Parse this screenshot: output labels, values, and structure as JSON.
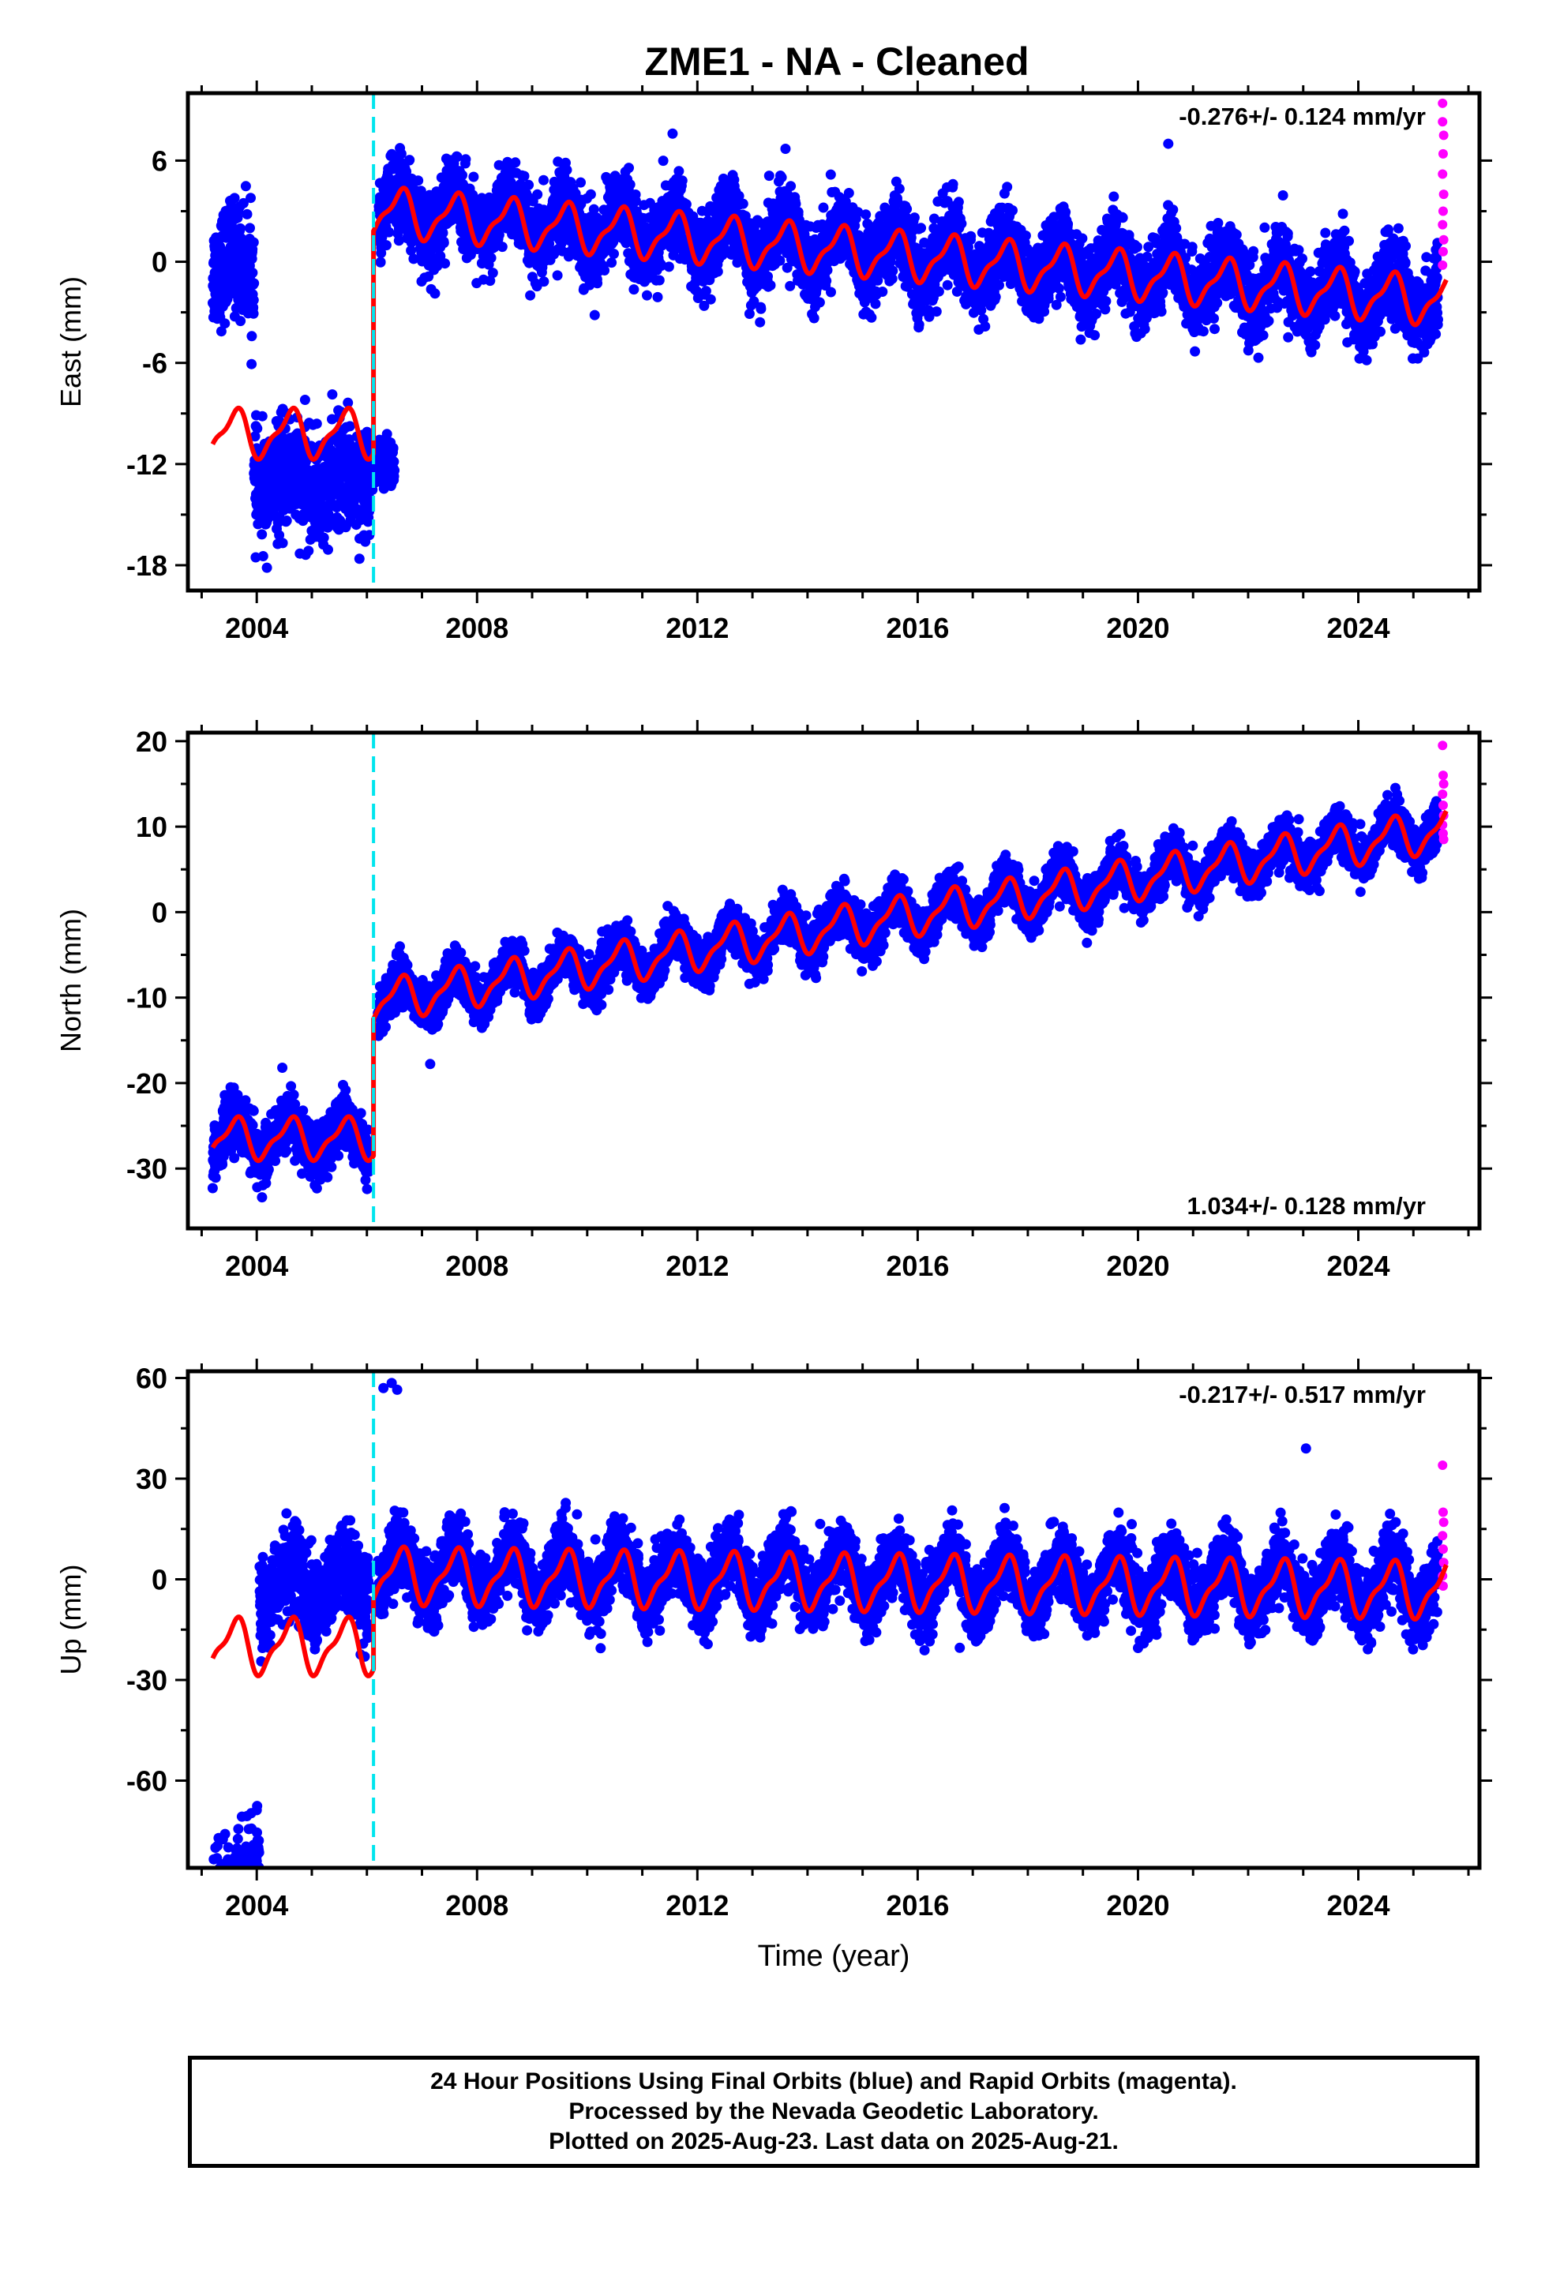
{
  "title": "ZME1  - NA - Cleaned",
  "footnote": {
    "line1": "24 Hour Positions Using Final Orbits (blue) and Rapid Orbits (magenta).",
    "line2": "Processed by the Nevada Geodetic Laboratory.",
    "line3": "Plotted on 2025-Aug-23. Last data on 2025-Aug-21."
  },
  "colors": {
    "final_orbits": "#0000ff",
    "rapid_orbits": "#ff00ff",
    "model_fit": "#ff0000",
    "equipment_change": "#00e5ee"
  },
  "chart_data": [
    {
      "type": "scatter",
      "ylabel": "East (mm)",
      "xlabel": "",
      "xlim": [
        2002.75,
        2026.2
      ],
      "ylim": [
        -19.5,
        10
      ],
      "xticks": [
        "2004",
        "2008",
        "2012",
        "2016",
        "2020",
        "2024"
      ],
      "yticks": [
        "6",
        "0",
        "-6",
        "-12",
        "-18"
      ],
      "velocity_label": "-0.276+/- 0.124 mm/yr",
      "velocity_position": "top-right",
      "break_epoch": 2006.12,
      "series": [
        {
          "name": "",
          "kind": "final",
          "segments": [
            {
              "start": 2003.2,
              "end": 2003.95,
              "offset": -0.3,
              "slope": 0,
              "amp": 0.6,
              "scatter": 1.6
            },
            {
              "start": 2003.95,
              "end": 2006.05,
              "offset": -13.0,
              "slope": 0,
              "amp": 0.6,
              "scatter": 1.6
            },
            {
              "start": 2006.0,
              "end": 2006.5,
              "offset": -12.0,
              "slope": 0,
              "amp": 0,
              "scatter": 0.8
            },
            {
              "start": 2006.2,
              "end": 2025.45,
              "offset": 3.1,
              "slope": -0.276,
              "amp": 1.3,
              "scatter": 1.15
            }
          ]
        },
        {
          "name": "",
          "kind": "rapid",
          "points": [
            [
              2025.53,
              9.4
            ],
            [
              2025.53,
              8.3
            ],
            [
              2025.55,
              7.5
            ],
            [
              2025.54,
              6.4
            ],
            [
              2025.53,
              5.2
            ],
            [
              2025.55,
              4.0
            ],
            [
              2025.54,
              3.0
            ],
            [
              2025.53,
              2.2
            ],
            [
              2025.55,
              1.3
            ],
            [
              2025.54,
              0.6
            ],
            [
              2025.53,
              -0.2
            ]
          ]
        },
        {
          "name": "",
          "kind": "model",
          "segments": [
            {
              "start": 2003.2,
              "end": 2006.12,
              "offset": -10.2,
              "slope": 0,
              "amp": 1.3
            },
            {
              "start": 2006.12,
              "end": 2025.6,
              "offset": 3.0,
              "slope": -0.276,
              "amp": 1.3
            }
          ]
        }
      ],
      "outliers": [
        [
          2020.55,
          7.0
        ],
        [
          2011.55,
          7.6
        ],
        [
          2013.6,
          6.7
        ]
      ]
    },
    {
      "type": "scatter",
      "ylabel": "North (mm)",
      "xlabel": "",
      "xlim": [
        2002.75,
        2026.2
      ],
      "ylim": [
        -37,
        21
      ],
      "xticks": [
        "2004",
        "2008",
        "2012",
        "2016",
        "2020",
        "2024"
      ],
      "yticks": [
        "20",
        "10",
        "0",
        "-10",
        "-20",
        "-30"
      ],
      "velocity_label": "1.034+/- 0.128 mm/yr",
      "velocity_position": "bottom-right",
      "break_epoch": 2006.12,
      "series": [
        {
          "name": "",
          "kind": "final",
          "segments": [
            {
              "start": 2003.2,
              "end": 2006.05,
              "offset": -26.5,
              "slope": 0,
              "amp": 2.2,
              "scatter": 1.6
            },
            {
              "start": 2006.2,
              "end": 2025.45,
              "offset": -10.5,
              "slope": 1.034,
              "amp": 2.2,
              "scatter": 1.3
            }
          ]
        },
        {
          "name": "",
          "kind": "rapid",
          "points": [
            [
              2025.53,
              19.5
            ],
            [
              2025.54,
              16.0
            ],
            [
              2025.55,
              15.0
            ],
            [
              2025.53,
              13.8
            ],
            [
              2025.54,
              12.5
            ],
            [
              2025.55,
              11.3
            ],
            [
              2025.53,
              10.2
            ],
            [
              2025.54,
              9.2
            ],
            [
              2025.55,
              8.5
            ]
          ]
        },
        {
          "name": "",
          "kind": "model",
          "segments": [
            {
              "start": 2003.2,
              "end": 2006.12,
              "offset": -26.5,
              "slope": 0,
              "amp": 2.2
            },
            {
              "start": 2006.12,
              "end": 2025.6,
              "offset": -10.5,
              "slope": 1.034,
              "amp": 2.2
            }
          ]
        }
      ],
      "outliers": []
    },
    {
      "type": "scatter",
      "ylabel": "Up (mm)",
      "xlabel": "Time (year)",
      "xlim": [
        2002.75,
        2026.2
      ],
      "ylim": [
        -86,
        62
      ],
      "xticks": [
        "2004",
        "2008",
        "2012",
        "2016",
        "2020",
        "2024"
      ],
      "yticks": [
        "60",
        "30",
        "0",
        "-30",
        "-60"
      ],
      "velocity_label": "-0.217+/- 0.517 mm/yr",
      "velocity_position": "top-right",
      "break_epoch": 2006.12,
      "series": [
        {
          "name": "",
          "kind": "final",
          "segments": [
            {
              "start": 2003.2,
              "end": 2004.05,
              "offset": -60.0,
              "slope": 12,
              "amp": 0,
              "scatter": 6.5
            },
            {
              "start": 2004.05,
              "end": 2006.05,
              "offset": -2.0,
              "slope": 0,
              "amp": 6,
              "scatter": 6.5
            },
            {
              "start": 2006.2,
              "end": 2025.45,
              "offset": 2.0,
              "slope": -0.217,
              "amp": 7.5,
              "scatter": 5.0
            }
          ]
        },
        {
          "name": "",
          "kind": "rapid",
          "points": [
            [
              2025.53,
              34.0
            ],
            [
              2025.54,
              20.0
            ],
            [
              2025.55,
              17.0
            ],
            [
              2025.53,
              13.0
            ],
            [
              2025.54,
              9.0
            ],
            [
              2025.55,
              5.0
            ],
            [
              2025.53,
              1.0
            ],
            [
              2025.54,
              -2.0
            ]
          ]
        },
        {
          "name": "",
          "kind": "model",
          "segments": [
            {
              "start": 2003.2,
              "end": 2006.12,
              "offset": -20.0,
              "slope": 0,
              "amp": 7.5
            },
            {
              "start": 2006.12,
              "end": 2025.6,
              "offset": 1.0,
              "slope": -0.217,
              "amp": 7.5
            }
          ]
        }
      ],
      "outliers": [
        [
          2006.3,
          57.0
        ],
        [
          2006.45,
          58.5
        ],
        [
          2006.55,
          56.5
        ],
        [
          2023.05,
          39.0
        ],
        [
          2003.25,
          -80.0
        ],
        [
          2004.0,
          -84.0
        ]
      ]
    }
  ]
}
